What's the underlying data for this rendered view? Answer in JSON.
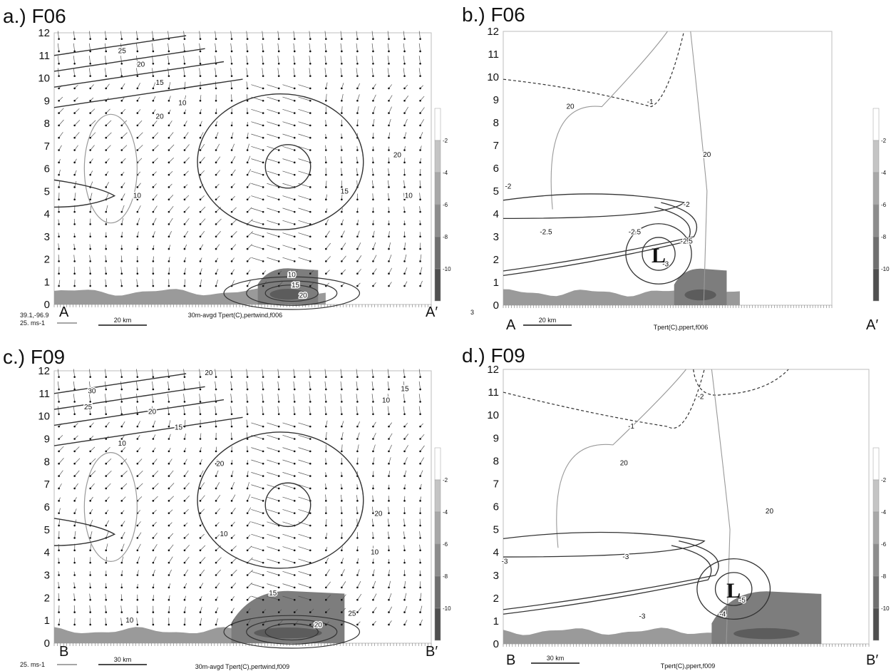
{
  "chart_data": [
    {
      "type": "contour",
      "title": "a.) F06",
      "y_ticks": [
        "0",
        "1",
        "2",
        "3",
        "4",
        "5",
        "6",
        "7",
        "8",
        "9",
        "10",
        "11",
        "12"
      ],
      "ylim": [
        0,
        12
      ],
      "section_start": "A",
      "section_end": "A′",
      "corner_label": "39.1,-96.9",
      "vector_ref_label": "25. ms-1",
      "scale_bar_label": "20 km",
      "caption": "30m-avgd Tpert(C),pertwind,f006",
      "contour_labels": [
        {
          "text": "25",
          "x": 0.18,
          "y": 11.2
        },
        {
          "text": "20",
          "x": 0.23,
          "y": 10.6
        },
        {
          "text": "15",
          "x": 0.28,
          "y": 9.8
        },
        {
          "text": "10",
          "x": 0.34,
          "y": 8.9
        },
        {
          "text": "20",
          "x": 0.28,
          "y": 8.3
        },
        {
          "text": "10",
          "x": 0.22,
          "y": 4.8
        },
        {
          "text": "20",
          "x": 0.91,
          "y": 6.6
        },
        {
          "text": "15",
          "x": 0.77,
          "y": 5.0
        },
        {
          "text": "10",
          "x": 0.94,
          "y": 4.8
        },
        {
          "text": "10",
          "x": 0.63,
          "y": 1.3
        },
        {
          "text": "15",
          "x": 0.64,
          "y": 0.85
        },
        {
          "text": "20",
          "x": 0.66,
          "y": 0.4
        }
      ],
      "colorbar_levels": [
        "-2",
        "-4",
        "-6",
        "-8",
        "-10"
      ]
    },
    {
      "type": "contour",
      "title": "b.) F06",
      "y_ticks": [
        "0",
        "1",
        "2",
        "3",
        "4",
        "5",
        "6",
        "7",
        "8",
        "9",
        "10",
        "11",
        "12"
      ],
      "ylim": [
        0,
        12
      ],
      "section_start": "A",
      "section_end": "A′",
      "corner_label": "3",
      "scale_bar_label": "20 km",
      "caption": "Tpert(C),ppert,f006",
      "low_label": "L",
      "low_position": {
        "x": 0.473,
        "y": 2.25
      },
      "contour_labels": [
        {
          "text": "-1",
          "x": 0.447,
          "y": 8.9
        },
        {
          "text": "20",
          "x": 0.204,
          "y": 8.7
        },
        {
          "text": "20",
          "x": 0.62,
          "y": 6.6
        },
        {
          "text": "-2",
          "x": 0.015,
          "y": 5.2
        },
        {
          "text": "-2",
          "x": 0.558,
          "y": 4.4
        },
        {
          "text": "-2.5",
          "x": 0.13,
          "y": 3.2
        },
        {
          "text": "-2.5",
          "x": 0.4,
          "y": 3.2
        },
        {
          "text": "-2.5",
          "x": 0.558,
          "y": 2.8
        },
        {
          "text": "-3",
          "x": 0.494,
          "y": 1.8
        }
      ],
      "colorbar_levels": [
        "-2",
        "-4",
        "-6",
        "-8",
        "-10"
      ]
    },
    {
      "type": "contour",
      "title": "c.) F09",
      "y_ticks": [
        "0",
        "1",
        "2",
        "3",
        "4",
        "5",
        "6",
        "7",
        "8",
        "9",
        "10",
        "11",
        "12"
      ],
      "ylim": [
        0,
        12
      ],
      "section_start": "B",
      "section_end": "B′",
      "vector_ref_label": "25. ms-1",
      "scale_bar_label": "30 km",
      "caption": "30m-avgd Tpert(C),pertwind,f009",
      "contour_labels": [
        {
          "text": "20",
          "x": 0.41,
          "y": 11.9
        },
        {
          "text": "30",
          "x": 0.1,
          "y": 11.1
        },
        {
          "text": "25",
          "x": 0.09,
          "y": 10.4
        },
        {
          "text": "20",
          "x": 0.26,
          "y": 10.2
        },
        {
          "text": "15",
          "x": 0.33,
          "y": 9.5
        },
        {
          "text": "10",
          "x": 0.18,
          "y": 8.8
        },
        {
          "text": "15",
          "x": 0.93,
          "y": 11.2
        },
        {
          "text": "10",
          "x": 0.88,
          "y": 10.7
        },
        {
          "text": "20",
          "x": 0.44,
          "y": 7.9
        },
        {
          "text": "20",
          "x": 0.86,
          "y": 5.7
        },
        {
          "text": "10",
          "x": 0.45,
          "y": 4.8
        },
        {
          "text": "10",
          "x": 0.85,
          "y": 4.0
        },
        {
          "text": "15",
          "x": 0.58,
          "y": 2.2
        },
        {
          "text": "10",
          "x": 0.2,
          "y": 1.0
        },
        {
          "text": "20",
          "x": 0.7,
          "y": 0.8
        },
        {
          "text": "25",
          "x": 0.79,
          "y": 1.3
        }
      ],
      "colorbar_levels": [
        "-2",
        "-4",
        "-6",
        "-8",
        "-10"
      ]
    },
    {
      "type": "contour",
      "title": "d.) F09",
      "y_ticks": [
        "0",
        "1",
        "2",
        "3",
        "4",
        "5",
        "6",
        "7",
        "8",
        "9",
        "10",
        "11",
        "12"
      ],
      "ylim": [
        0,
        12
      ],
      "section_start": "B",
      "section_end": "B′",
      "scale_bar_label": "30 km",
      "caption": "Tpert(C),ppert,f009",
      "low_label": "L",
      "low_position": {
        "x": 0.63,
        "y": 2.4
      },
      "contour_labels": [
        {
          "text": "-2",
          "x": 0.54,
          "y": 10.8
        },
        {
          "text": "-1",
          "x": 0.35,
          "y": 9.5
        },
        {
          "text": "20",
          "x": 0.33,
          "y": 7.9
        },
        {
          "text": "20",
          "x": 0.728,
          "y": 5.8
        },
        {
          "text": "-3",
          "x": 0.004,
          "y": 3.6
        },
        {
          "text": "-3",
          "x": 0.335,
          "y": 3.8
        },
        {
          "text": "-3",
          "x": 0.38,
          "y": 1.2
        },
        {
          "text": "-4",
          "x": 0.6,
          "y": 1.3
        },
        {
          "text": "-5",
          "x": 0.654,
          "y": 1.9
        }
      ],
      "colorbar_levels": [
        "-2",
        "-4",
        "-6",
        "-8",
        "-10"
      ]
    }
  ]
}
